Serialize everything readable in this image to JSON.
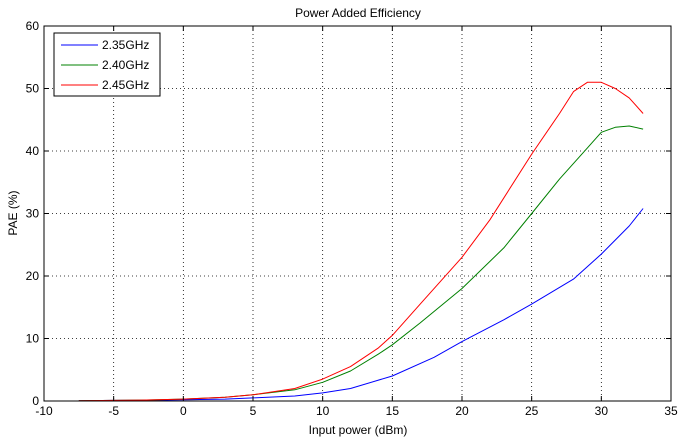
{
  "chart_data": {
    "type": "line",
    "title": "Power Added Efficiency",
    "xlabel": "Input power (dBm)",
    "ylabel": "PAE (%)",
    "xlim": [
      -10,
      35
    ],
    "ylim": [
      0,
      60
    ],
    "xticks": [
      -10,
      -5,
      0,
      5,
      10,
      15,
      20,
      25,
      30,
      35
    ],
    "yticks": [
      0,
      10,
      20,
      30,
      40,
      50,
      60
    ],
    "grid": true,
    "legend_position": "top-left",
    "series": [
      {
        "name": "2.35GHz",
        "color": "#0000ff",
        "x": [
          -7.5,
          -5,
          -3,
          0,
          3,
          5,
          8,
          10,
          12,
          15,
          18,
          20,
          23,
          25,
          28,
          30,
          32,
          33
        ],
        "y": [
          0.05,
          0.1,
          0.1,
          0.2,
          0.3,
          0.5,
          0.8,
          1.3,
          2.0,
          4.0,
          7.0,
          9.5,
          13.0,
          15.5,
          19.5,
          23.5,
          28.0,
          30.8
        ]
      },
      {
        "name": "2.40GHz",
        "color": "#008000",
        "x": [
          -7.5,
          -5,
          -3,
          0,
          3,
          5,
          8,
          10,
          12,
          14,
          15,
          17,
          20,
          23,
          25,
          27,
          29,
          30,
          31,
          32,
          33
        ],
        "y": [
          0.05,
          0.1,
          0.15,
          0.3,
          0.6,
          1.0,
          1.8,
          3.0,
          4.8,
          7.5,
          9.0,
          12.5,
          18.0,
          24.5,
          30.0,
          35.5,
          40.5,
          43.0,
          43.8,
          44.0,
          43.5
        ]
      },
      {
        "name": "2.45GHz",
        "color": "#ff0000",
        "x": [
          -7.5,
          -5,
          -3,
          0,
          3,
          5,
          8,
          10,
          12,
          14,
          15,
          17,
          20,
          22,
          25,
          27,
          28,
          29,
          30,
          31,
          32,
          33
        ],
        "y": [
          0.05,
          0.1,
          0.15,
          0.3,
          0.6,
          1.0,
          2.0,
          3.5,
          5.5,
          8.5,
          10.5,
          15.5,
          23.0,
          29.0,
          39.5,
          46.0,
          49.5,
          51.0,
          51.0,
          50.0,
          48.5,
          46.0
        ]
      }
    ]
  }
}
